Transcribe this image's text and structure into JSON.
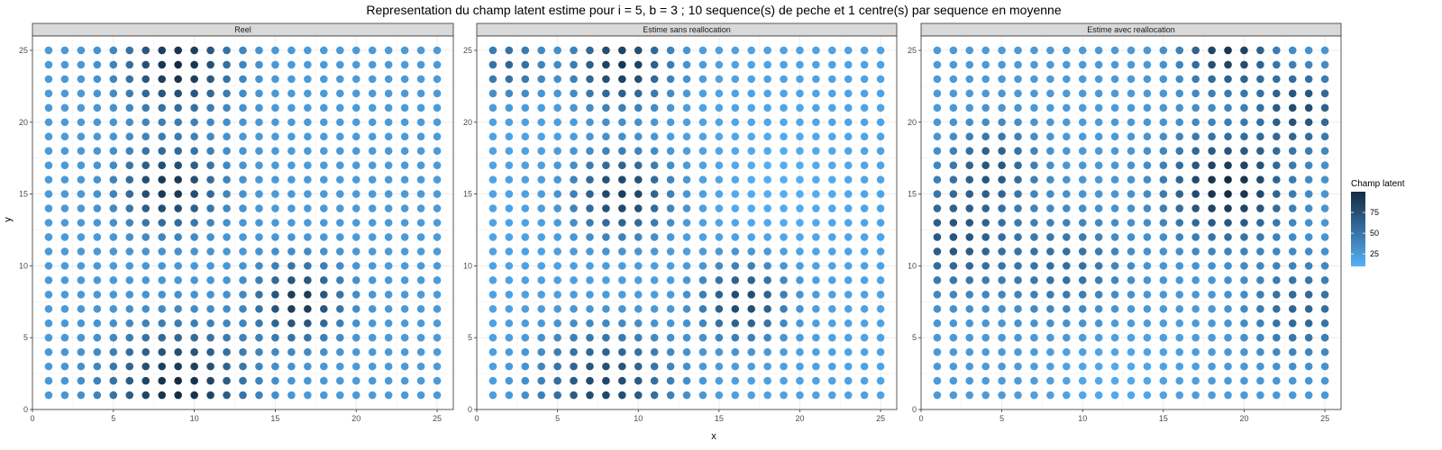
{
  "chart_data": {
    "type": "scatter",
    "title": "Representation du champ latent estime pour i = 5, b = 3 ; 10 sequence(s) de peche et 1 centre(s) par sequence en moyenne",
    "xlabel": "x",
    "ylabel": "y",
    "xlim": [
      0,
      26
    ],
    "ylim": [
      0,
      26
    ],
    "x_ticks": [
      0,
      5,
      10,
      15,
      20,
      25
    ],
    "y_ticks": [
      0,
      5,
      10,
      15,
      20,
      25
    ],
    "grid": true,
    "legend": {
      "title": "Champ latent",
      "placement": "right",
      "ticks": [
        25,
        50,
        75
      ],
      "range": [
        10,
        100
      ],
      "low_color": "#56B1F7",
      "high_color": "#132B43"
    },
    "panels": [
      {
        "name": "Reel",
        "background_value": 25,
        "hotspots": [
          {
            "x": 9,
            "y": 24,
            "value": 100,
            "sigma": 2.2
          },
          {
            "x": 8.5,
            "y": 15.5,
            "value": 95,
            "sigma": 2.0
          },
          {
            "x": 9,
            "y": 1.5,
            "value": 100,
            "sigma": 2.8
          },
          {
            "x": 16.5,
            "y": 7.5,
            "value": 92,
            "sigma": 1.8
          }
        ]
      },
      {
        "name": "Estime sans reallocation",
        "background_value": 20,
        "hotspots": [
          {
            "x": 9,
            "y": 24,
            "value": 92,
            "sigma": 2.0
          },
          {
            "x": 9,
            "y": 15,
            "value": 88,
            "sigma": 2.0
          },
          {
            "x": 8,
            "y": 1.5,
            "value": 82,
            "sigma": 2.8
          },
          {
            "x": 16.5,
            "y": 7.5,
            "value": 82,
            "sigma": 1.8
          },
          {
            "x": 2,
            "y": 24,
            "value": 60,
            "sigma": 1.5
          }
        ],
        "coldspots": [
          {
            "x": 19,
            "y": 16,
            "value": 12,
            "sigma": 3.0
          }
        ]
      },
      {
        "name": "Estime avec reallocation",
        "background_value": 25,
        "hotspots": [
          {
            "x": 19,
            "y": 15.5,
            "value": 100,
            "sigma": 2.5
          },
          {
            "x": 19,
            "y": 25,
            "value": 92,
            "sigma": 1.8
          },
          {
            "x": 23.5,
            "y": 21,
            "value": 78,
            "sigma": 1.8
          },
          {
            "x": 2,
            "y": 12,
            "value": 72,
            "sigma": 2.5
          },
          {
            "x": 4.5,
            "y": 17,
            "value": 68,
            "sigma": 1.8
          },
          {
            "x": 9,
            "y": 10,
            "value": 55,
            "sigma": 2.5
          },
          {
            "x": 23.5,
            "y": 7,
            "value": 62,
            "sigma": 2.2
          }
        ],
        "coldspots": [
          {
            "x": 12,
            "y": 2,
            "value": 15,
            "sigma": 3.0
          }
        ]
      }
    ]
  }
}
